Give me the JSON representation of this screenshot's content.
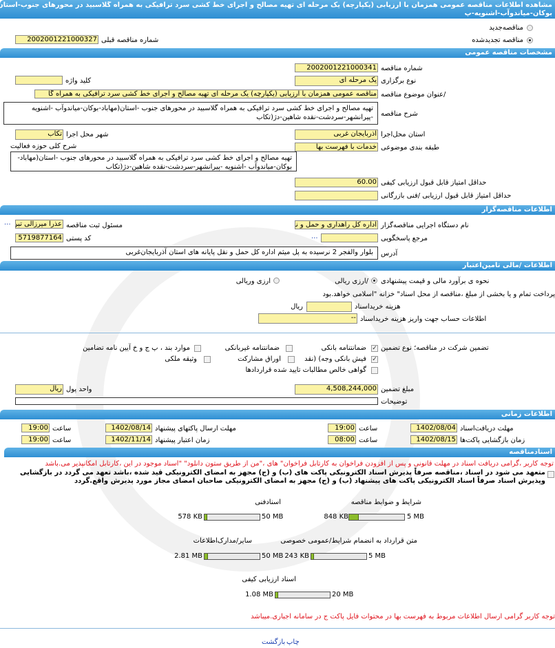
{
  "header": {
    "title_line1": "مشاهده اطلاعات مناقصه  عمومی  همزمان با ارزیابی  (یکپارچه) یک مرحله ای تهیه مصالح و اجرای خط کشی سرد ترافیکی به همراه گلاسبید در  محورهای جنوب-استان(مهاباد",
    "title_line2": "بوکان-میاندوآب-اشنویه-پ"
  },
  "tender_type": {
    "new_label": "مناقصه‌جدید",
    "renewed_label": "مناقصه تجدیدشده",
    "selected": "renewed",
    "prev_number_label": "شماره  مناقصه قبلی",
    "prev_number": "2002001221000327"
  },
  "general": {
    "section_title": "مشخصات مناقصه عمومی",
    "number_label": "شماره مناقصه",
    "number": "2002001221000341",
    "holding_type_label": "نوع برگزاری",
    "holding_type": "یک مرحله ای",
    "keyword_label": "کلید واژه",
    "keyword": "",
    "subject_label": "/عنوان  موضوع مناقصه",
    "subject": "مناقصه عمومی همزمان با ارزیابی (یکپارچه) یک مرحله ای تهیه مصالح و اجرای خط کشی سرد ترافیکی به همراه گا",
    "description_label": "شرح مناقصه",
    "description": "تهیه  مصالح و اجرای خط کشی سرد ترافیکی به همراه گلاسبید در  محورهای جنوب -استان(مهاباد-بوکان-میاندوآب -اشنویه -پیرانشهر-سردشت-نقده  شاهین-دژ(تکاب",
    "province_label": "استان محل‌اجرا",
    "province": "آذربایجان غربی",
    "city_label": "شهر محل اجرا",
    "city": "تکاب",
    "category_label": "طبقه بندی موضوعی",
    "category": "خدمات با فهرست بها",
    "activity_label": "شرح کلی حوزه فعالیت",
    "activity": "تهیه  مصالح و اجرای خط کشی سرد ترافیکی به همراه گلاسبید در  محورهای جنوب -استان(مهاباد-بوکان-میاندوآب -اشنویه -پیرانشهر-سردشت-نقده  شاهین-دژ(تکاب",
    "min_quality_label": "حداقل  امتیاز قابل قبول  ارزیابی کیفی",
    "min_quality": "60.00",
    "min_tech_label": "حداقل  امتیاز قابل قبول  ارزیابی /فنی بازرگانی",
    "min_tech": ""
  },
  "organizer": {
    "section_title": "اطلاعات مناقصه‌گزار",
    "org_label": "نام  دستگاه  اجرایی  مناقصه‌گزار",
    "org": "اداره کل راهداری و حمل و نق",
    "registrar_label": "مسئول ثبت مناقصه",
    "registrar": "عذرا میرزالی تبریزی",
    "reference_label": "مرجع پاسخگویی",
    "reference": "",
    "postal_label": "کد  پستی",
    "postal": "5719877164",
    "address_label": "آدرس",
    "address": "بلوار والفجر 2 نرسیده به پل  میثم اداره کل حمل و نقل پایانه های  استان  آذربایجان‌غربی",
    "more": "..."
  },
  "finance": {
    "section_title": "اطلاعات /مالی تامین‌اعتبار",
    "estimate_label": "نحوه ی برآورد مالی و قیمت پیشنهادی",
    "rial_label": "/ارزی ریالی",
    "fx_rial_label": "ارزی وریالی",
    "selected": "rial",
    "payment_note": "پرداخت تمام و یا بخشی از مبلغ  ،مناقصه از محل اسناد\" خزانه \"اسلامی خواهد.بود",
    "doc_fee_label": "هزینه خریداسناد",
    "doc_fee": "",
    "doc_fee_unit": "ریال",
    "account_label": "اطلاعات حساب جهت واریز  هزینه خریداسناد",
    "account": "--"
  },
  "guarantee": {
    "label": "تضمین شرکت در  مناقصه؛   نوع    تضمین",
    "options": [
      {
        "label": "ضمانتنامه  بانکی",
        "checked": true
      },
      {
        "label": "ضمانتنامه  غیربانکی",
        "checked": false
      },
      {
        "label": "موارد  بند ، پ ج و خ آیین نامه تضامین",
        "checked": false
      },
      {
        "label": "فیش  بانکی وجه) (نقد",
        "checked": true
      },
      {
        "label": "اوراق  مشارکت",
        "checked": false
      },
      {
        "label": "وثیقه ملکی",
        "checked": false
      },
      {
        "label": "گواهی  خالص مطالبات تایید شده قراردادها",
        "checked": false
      }
    ],
    "amount_label": "مبلغ تضمین",
    "amount": "4,508,244,000",
    "currency_label": "واحد پول",
    "currency": "ریال",
    "notes_label": "توضیحات",
    "notes": ""
  },
  "timing": {
    "section_title": "اطلاعات زمانی",
    "doc_deadline_label": "مهلت  دریافت‌اسناد",
    "doc_deadline_date": "1402/08/04",
    "doc_deadline_time": "19:00",
    "submit_label": "مهلت      ارسال  پاکتهای پیشنهاد",
    "submit_date": "1402/08/14",
    "submit_time": "19:00",
    "opening_label": "زمان  بازگشایی پاکت‌ها",
    "opening_date": "1402/08/15",
    "opening_time": "08:00",
    "validity_label": "زمان       اعتبار پیشنهاد",
    "validity_date": "1402/11/14",
    "validity_time": "19:00",
    "time_label": "ساعت"
  },
  "documents": {
    "section_title": "اسنادمناقصه",
    "notice": "توجه کاربر ،گرامی دریافت اسناد در مهلت قانونی و پس از افزودن فراخوان به کارتابل فراخوان\" های ،\"من از طریق  ستون  دانلود\" \"اسناد موجود در این ،کارتابل امکانپذیر می.باشد",
    "commit_line1": "متعهد می شود در اسناد ،مناقصه صرفاً پذیرش اسناد الکترونیکی پاکت های (ب) و (ج) مجهز به امضای الکترونیکی قید شده ،باشد تعهد می گردد در بازگشایی وپذیرش",
    "commit_line2": "اسناد صرفاً اسناد الکترونیکی پاکت های پیشنهاد (ب) و (ج) مجهز به امضای الکترونیکی صاحبان امضای مجاز مورد پذیرش واقع.گردد",
    "files": [
      {
        "label": "شرایط و  ضوابط مناقصه",
        "size": "848 KB",
        "max": "5 MB",
        "fraction": 0.17
      },
      {
        "label": "اسنادفنی",
        "size": "578 KB",
        "max": "50 MB",
        "fraction": 0.02
      },
      {
        "label": "متن قرارداد به  انضمام شرایط/عمومی خصوصی",
        "size": "243 KB",
        "max": "5 MB",
        "fraction": 0.05
      },
      {
        "label": "سایر/مدارک‌اطلاعات",
        "size": "2.81 MB",
        "max": "50 MB",
        "fraction": 0.06
      },
      {
        "label": "اسناد  ارزیابی کیفی",
        "size": "1.08 MB",
        "max": "20 MB",
        "fraction": 0.05
      }
    ],
    "price_notice": "توجه کاربر گرامی ارسال اطلاعات مربوط به فهرست بها در محتوات فایل پاکت ج در سامانه  اجباری.میباشد"
  },
  "footer": {
    "print": "چاپ",
    "back": "بازگشت"
  },
  "colors": {
    "section_bar": "#3d9ad6",
    "input_bg": "#fbf3a5",
    "alert": "#e0141e",
    "progress": "#8cbc2a",
    "link": "#1a3fb0"
  }
}
